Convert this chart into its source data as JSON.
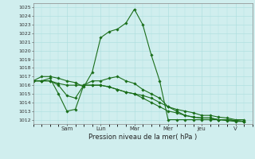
{
  "title": "Pression niveau de la mer( hPa )",
  "ylim": [
    1011.5,
    1025.5
  ],
  "yticks": [
    1012,
    1013,
    1014,
    1015,
    1016,
    1017,
    1018,
    1019,
    1020,
    1021,
    1022,
    1023,
    1024,
    1025
  ],
  "x_tick_labels": [
    "Sam",
    "Lun",
    "Mar",
    "Mer",
    "Jeu",
    "V"
  ],
  "x_tick_positions": [
    24,
    48,
    72,
    96,
    120,
    144
  ],
  "xlim": [
    0,
    156
  ],
  "bg_color": "#d0eeee",
  "grid_color": "#aadddd",
  "line_color": "#1a6e1a",
  "series": [
    {
      "x": [
        0,
        6,
        12,
        18,
        24,
        30,
        36,
        42,
        48,
        54,
        60,
        66,
        72,
        78,
        84,
        90,
        96,
        102,
        108,
        114,
        120,
        126,
        132,
        138,
        144,
        150
      ],
      "y": [
        1016.5,
        1017.0,
        1017.0,
        1016.8,
        1016.5,
        1016.3,
        1015.8,
        1017.5,
        1021.5,
        1022.2,
        1022.5,
        1023.2,
        1024.8,
        1023.0,
        1019.5,
        1016.5,
        1012.0,
        1012.0,
        1012.0,
        1012.0,
        1012.0,
        1012.0,
        1012.0,
        1011.9,
        1011.8,
        1011.8
      ]
    },
    {
      "x": [
        0,
        6,
        12,
        18,
        24,
        30,
        36,
        42,
        48,
        54,
        60,
        66,
        72,
        78,
        84,
        90,
        96,
        102,
        108,
        114,
        120,
        126,
        132,
        138,
        144,
        150
      ],
      "y": [
        1016.5,
        1016.5,
        1016.8,
        1015.0,
        1013.0,
        1013.2,
        1016.0,
        1016.5,
        1016.5,
        1016.8,
        1017.0,
        1016.5,
        1016.2,
        1015.5,
        1015.0,
        1014.5,
        1013.5,
        1013.0,
        1012.5,
        1012.3,
        1012.2,
        1012.2,
        1012.0,
        1012.0,
        1011.9,
        1011.8
      ]
    },
    {
      "x": [
        0,
        6,
        12,
        18,
        24,
        30,
        36,
        42,
        48,
        54,
        60,
        66,
        72,
        78,
        84,
        90,
        96,
        102,
        108,
        114,
        120,
        126,
        132,
        138,
        144,
        150
      ],
      "y": [
        1016.5,
        1016.5,
        1016.5,
        1016.0,
        1014.8,
        1014.5,
        1016.0,
        1016.0,
        1016.0,
        1015.8,
        1015.5,
        1015.2,
        1015.0,
        1014.5,
        1014.0,
        1013.5,
        1013.0,
        1012.8,
        1012.5,
        1012.3,
        1012.2,
        1012.2,
        1012.0,
        1012.0,
        1011.9,
        1011.8
      ]
    },
    {
      "x": [
        0,
        6,
        12,
        18,
        24,
        30,
        36,
        42,
        48,
        54,
        60,
        66,
        72,
        78,
        84,
        90,
        96,
        102,
        108,
        114,
        120,
        126,
        132,
        138,
        144,
        150
      ],
      "y": [
        1016.5,
        1016.5,
        1016.5,
        1016.2,
        1016.0,
        1016.0,
        1016.0,
        1016.0,
        1016.0,
        1015.8,
        1015.5,
        1015.2,
        1015.0,
        1014.8,
        1014.5,
        1014.0,
        1013.5,
        1013.2,
        1013.0,
        1012.8,
        1012.5,
        1012.5,
        1012.3,
        1012.2,
        1012.0,
        1012.0
      ]
    }
  ]
}
